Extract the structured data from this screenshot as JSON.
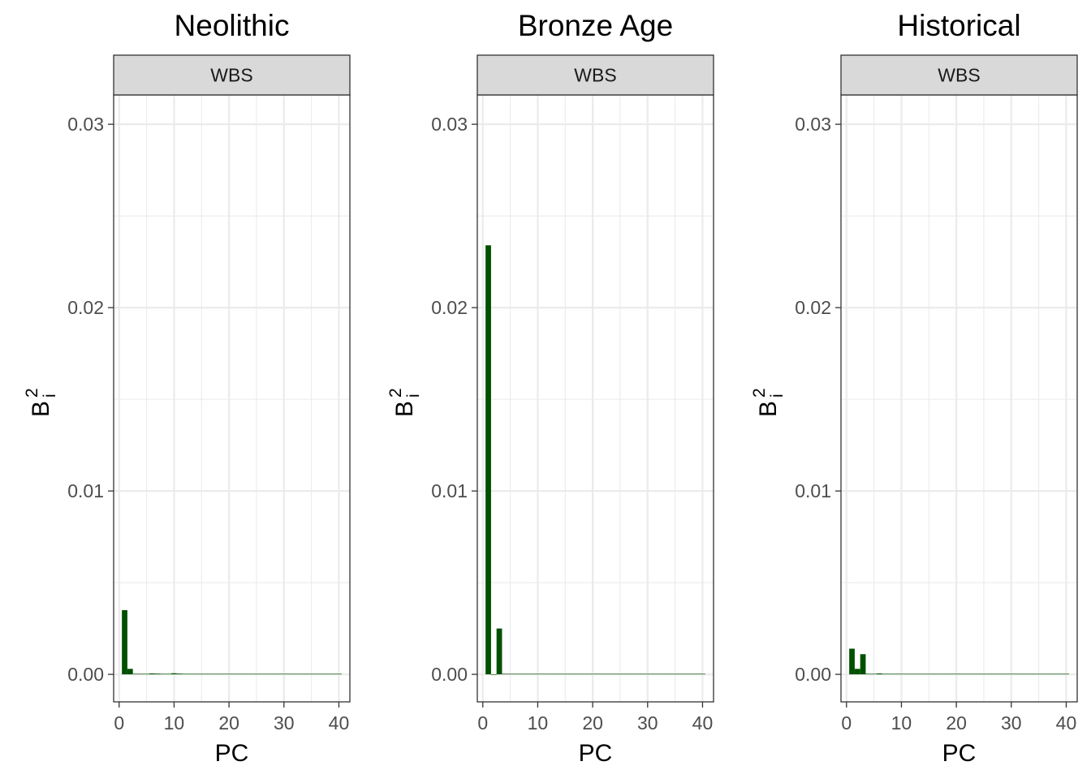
{
  "chart_data": [
    {
      "type": "bar",
      "title": "Neolithic",
      "facet_label": "WBS",
      "xlabel": "PC",
      "ylabel": "B",
      "ylabel_sup": "2",
      "ylabel_sub": "i",
      "xlim": [
        -1,
        42
      ],
      "ylim": [
        -0.0015,
        0.0316
      ],
      "x_ticks": [
        0,
        10,
        20,
        30,
        40
      ],
      "y_ticks": [
        "0.00",
        "0.01",
        "0.02",
        "0.03"
      ],
      "grid": true,
      "bar_color": "#005000",
      "x": [
        1,
        2,
        3,
        4,
        5,
        6,
        7,
        8,
        9,
        10,
        11,
        12,
        13,
        14,
        15,
        16,
        17,
        18,
        19,
        20,
        21,
        22,
        23,
        24,
        25,
        26,
        27,
        28,
        29,
        30,
        31,
        32,
        33,
        34,
        35,
        36,
        37,
        38,
        39,
        40
      ],
      "values": [
        0.0035,
        0.0003,
        3e-05,
        3e-05,
        3e-05,
        5e-05,
        4e-05,
        3e-05,
        3e-05,
        6e-05,
        4e-05,
        3e-05,
        3e-05,
        3e-05,
        3e-05,
        3e-05,
        3e-05,
        3e-05,
        3e-05,
        3e-05,
        3e-05,
        3e-05,
        3e-05,
        3e-05,
        3e-05,
        3e-05,
        3e-05,
        3e-05,
        3e-05,
        3e-05,
        3e-05,
        3e-05,
        3e-05,
        3e-05,
        3e-05,
        3e-05,
        3e-05,
        3e-05,
        3e-05,
        3e-05
      ]
    },
    {
      "type": "bar",
      "title": "Bronze Age",
      "facet_label": "WBS",
      "xlabel": "PC",
      "ylabel": "B",
      "ylabel_sup": "2",
      "ylabel_sub": "i",
      "xlim": [
        -1,
        42
      ],
      "ylim": [
        -0.0015,
        0.0316
      ],
      "x_ticks": [
        0,
        10,
        20,
        30,
        40
      ],
      "y_ticks": [
        "0.00",
        "0.01",
        "0.02",
        "0.03"
      ],
      "grid": true,
      "bar_color": "#005000",
      "x": [
        1,
        2,
        3,
        4,
        5,
        6,
        7,
        8,
        9,
        10,
        11,
        12,
        13,
        14,
        15,
        16,
        17,
        18,
        19,
        20,
        21,
        22,
        23,
        24,
        25,
        26,
        27,
        28,
        29,
        30,
        31,
        32,
        33,
        34,
        35,
        36,
        37,
        38,
        39,
        40
      ],
      "values": [
        0.0234,
        0.0,
        0.0025,
        3e-05,
        3e-05,
        3e-05,
        3e-05,
        3e-05,
        3e-05,
        3e-05,
        3e-05,
        3e-05,
        3e-05,
        3e-05,
        3e-05,
        3e-05,
        3e-05,
        3e-05,
        3e-05,
        3e-05,
        3e-05,
        3e-05,
        3e-05,
        3e-05,
        3e-05,
        3e-05,
        3e-05,
        3e-05,
        3e-05,
        3e-05,
        3e-05,
        3e-05,
        3e-05,
        3e-05,
        3e-05,
        3e-05,
        3e-05,
        3e-05,
        3e-05,
        3e-05
      ]
    },
    {
      "type": "bar",
      "title": "Historical",
      "facet_label": "WBS",
      "xlabel": "PC",
      "ylabel": "B",
      "ylabel_sup": "2",
      "ylabel_sub": "i",
      "xlim": [
        -1,
        42
      ],
      "ylim": [
        -0.0015,
        0.0316
      ],
      "x_ticks": [
        0,
        10,
        20,
        30,
        40
      ],
      "y_ticks": [
        "0.00",
        "0.01",
        "0.02",
        "0.03"
      ],
      "grid": true,
      "bar_color": "#005000",
      "x": [
        1,
        2,
        3,
        4,
        5,
        6,
        7,
        8,
        9,
        10,
        11,
        12,
        13,
        14,
        15,
        16,
        17,
        18,
        19,
        20,
        21,
        22,
        23,
        24,
        25,
        26,
        27,
        28,
        29,
        30,
        31,
        32,
        33,
        34,
        35,
        36,
        37,
        38,
        39,
        40
      ],
      "values": [
        0.0014,
        0.0003,
        0.0011,
        3e-05,
        3e-05,
        5e-05,
        3e-05,
        3e-05,
        3e-05,
        3e-05,
        3e-05,
        3e-05,
        3e-05,
        3e-05,
        3e-05,
        3e-05,
        3e-05,
        3e-05,
        3e-05,
        3e-05,
        3e-05,
        3e-05,
        3e-05,
        3e-05,
        3e-05,
        3e-05,
        3e-05,
        3e-05,
        3e-05,
        3e-05,
        3e-05,
        3e-05,
        3e-05,
        3e-05,
        3e-05,
        3e-05,
        3e-05,
        3e-05,
        3e-05,
        3e-05
      ]
    }
  ]
}
